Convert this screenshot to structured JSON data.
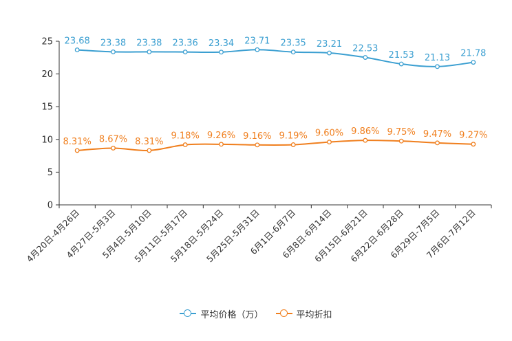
{
  "chart_data": {
    "type": "line",
    "title": "",
    "xlabel": "",
    "ylabel": "",
    "ylim": [
      0,
      25
    ],
    "yticks": [
      0,
      5,
      10,
      15,
      20,
      25
    ],
    "categories": [
      "4月20日-4月26日",
      "4月27日-5月3日",
      "5月4日-5月10日",
      "5月11日-5月17日",
      "5月18日-5月24日",
      "5月25日-5月31日",
      "6月1日-6月7日",
      "6月8日-6月14日",
      "6月15日-6月21日",
      "6月22日-6月28日",
      "6月29日-7月5日",
      "7月6日-7月12日"
    ],
    "series": [
      {
        "name": "平均价格（万）",
        "color": "#3b9fd1",
        "values": [
          23.68,
          23.38,
          23.38,
          23.36,
          23.34,
          23.71,
          23.35,
          23.21,
          22.53,
          21.53,
          21.13,
          21.78
        ],
        "labels": [
          "23.68",
          "23.38",
          "23.38",
          "23.36",
          "23.34",
          "23.71",
          "23.35",
          "23.21",
          "22.53",
          "21.53",
          "21.13",
          "21.78"
        ]
      },
      {
        "name": "平均折扣",
        "color": "#f07f1e",
        "values": [
          8.31,
          8.67,
          8.31,
          9.18,
          9.26,
          9.16,
          9.19,
          9.6,
          9.86,
          9.75,
          9.47,
          9.27
        ],
        "labels": [
          "8.31%",
          "8.67%",
          "8.31%",
          "9.18%",
          "9.26%",
          "9.16%",
          "9.19%",
          "9.60%",
          "9.86%",
          "9.75%",
          "9.47%",
          "9.27%"
        ]
      }
    ],
    "legend_position": "bottom-center",
    "grid": false
  }
}
